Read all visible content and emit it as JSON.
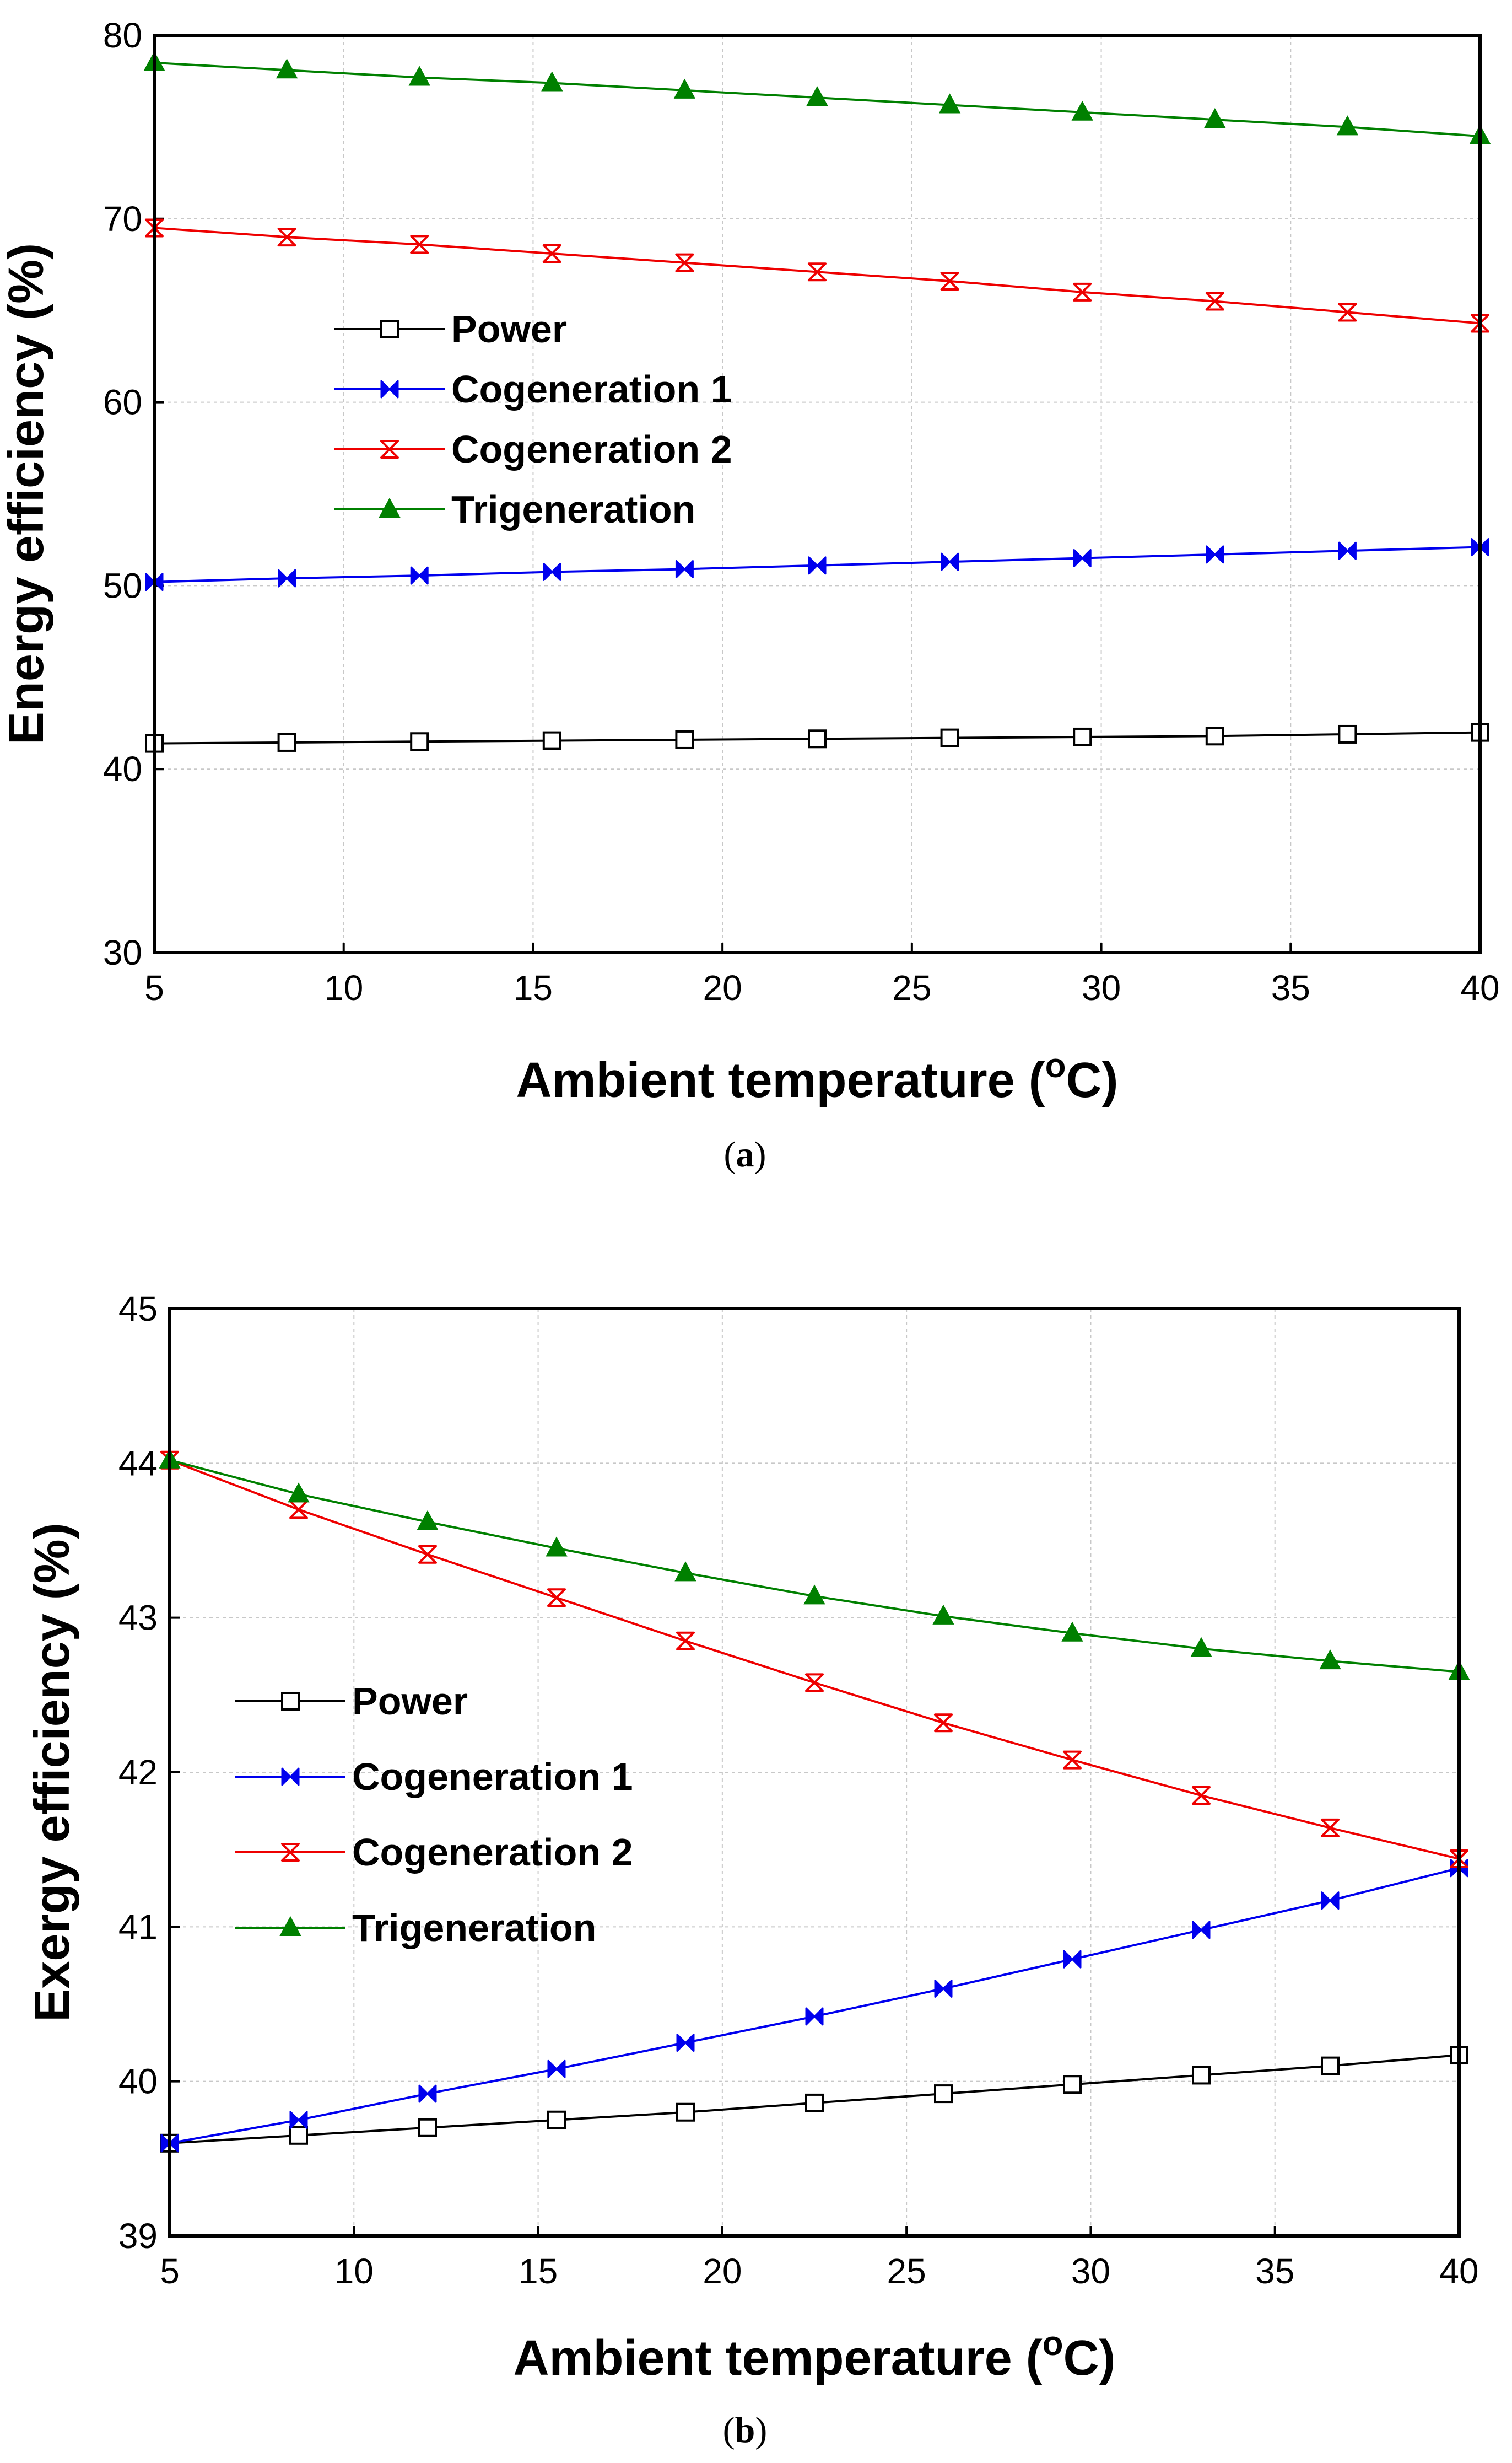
{
  "chart_data": [
    {
      "type": "line",
      "panel": "(a)",
      "caption_letter": "a",
      "ylabel": "Energy efficiency (%)",
      "xlabel_main": "Ambient temperature (",
      "xlabel_sup": "o",
      "xlabel_end": "C)",
      "xlim": [
        5,
        40
      ],
      "ylim": [
        30,
        80
      ],
      "xticks": [
        5,
        10,
        15,
        20,
        25,
        30,
        35,
        40
      ],
      "yticks": [
        30,
        40,
        50,
        60,
        70,
        80
      ],
      "grid": true,
      "legend_position": "middle-left",
      "x": [
        5,
        8.5,
        12,
        15.5,
        19,
        22.5,
        26,
        29.5,
        33,
        36.5,
        40
      ],
      "series": [
        {
          "name": "Power",
          "color": "#000000",
          "marker": "open-square",
          "values": [
            41.4,
            41.45,
            41.5,
            41.55,
            41.6,
            41.65,
            41.7,
            41.75,
            41.8,
            41.9,
            42.0
          ]
        },
        {
          "name": "Cogeneration 1",
          "color": "#0000ee",
          "marker": "bowtie",
          "values": [
            50.2,
            50.4,
            50.55,
            50.75,
            50.9,
            51.1,
            51.3,
            51.5,
            51.7,
            51.9,
            52.1
          ]
        },
        {
          "name": "Cogeneration 2",
          "color": "#ee0000",
          "marker": "hourglass",
          "values": [
            69.5,
            69.0,
            68.6,
            68.1,
            67.6,
            67.1,
            66.6,
            66.0,
            65.5,
            64.9,
            64.3
          ]
        },
        {
          "name": "Trigeneration",
          "color": "#008000",
          "marker": "filled-triangle",
          "values": [
            78.5,
            78.1,
            77.7,
            77.4,
            77.0,
            76.6,
            76.2,
            75.8,
            75.4,
            75.0,
            74.5
          ]
        }
      ]
    },
    {
      "type": "line",
      "panel": "(b)",
      "caption_letter": "b",
      "ylabel": "Exergy efficiency (%)",
      "xlabel_main": "Ambient temperature (",
      "xlabel_sup": "o",
      "xlabel_end": "C)",
      "xlim": [
        5,
        40
      ],
      "ylim": [
        39,
        45
      ],
      "xticks": [
        5,
        10,
        15,
        20,
        25,
        30,
        35,
        40
      ],
      "yticks": [
        39,
        40,
        41,
        42,
        43,
        44,
        45
      ],
      "grid": true,
      "legend_position": "middle-left",
      "x": [
        5,
        8.5,
        12,
        15.5,
        19,
        22.5,
        26,
        29.5,
        33,
        36.5,
        40
      ],
      "series": [
        {
          "name": "Power",
          "color": "#000000",
          "marker": "open-square",
          "values": [
            39.6,
            39.65,
            39.7,
            39.75,
            39.8,
            39.86,
            39.92,
            39.98,
            40.04,
            40.1,
            40.17
          ]
        },
        {
          "name": "Cogeneration 1",
          "color": "#0000ee",
          "marker": "bowtie",
          "values": [
            39.6,
            39.75,
            39.92,
            40.08,
            40.25,
            40.42,
            40.6,
            40.79,
            40.98,
            41.17,
            41.38
          ]
        },
        {
          "name": "Cogeneration 2",
          "color": "#ee0000",
          "marker": "hourglass",
          "values": [
            44.02,
            43.7,
            43.41,
            43.13,
            42.85,
            42.58,
            42.32,
            42.08,
            41.85,
            41.64,
            41.44
          ]
        },
        {
          "name": "Trigeneration",
          "color": "#008000",
          "marker": "filled-triangle",
          "values": [
            44.02,
            43.8,
            43.62,
            43.45,
            43.29,
            43.14,
            43.01,
            42.9,
            42.8,
            42.72,
            42.65
          ]
        }
      ]
    }
  ]
}
